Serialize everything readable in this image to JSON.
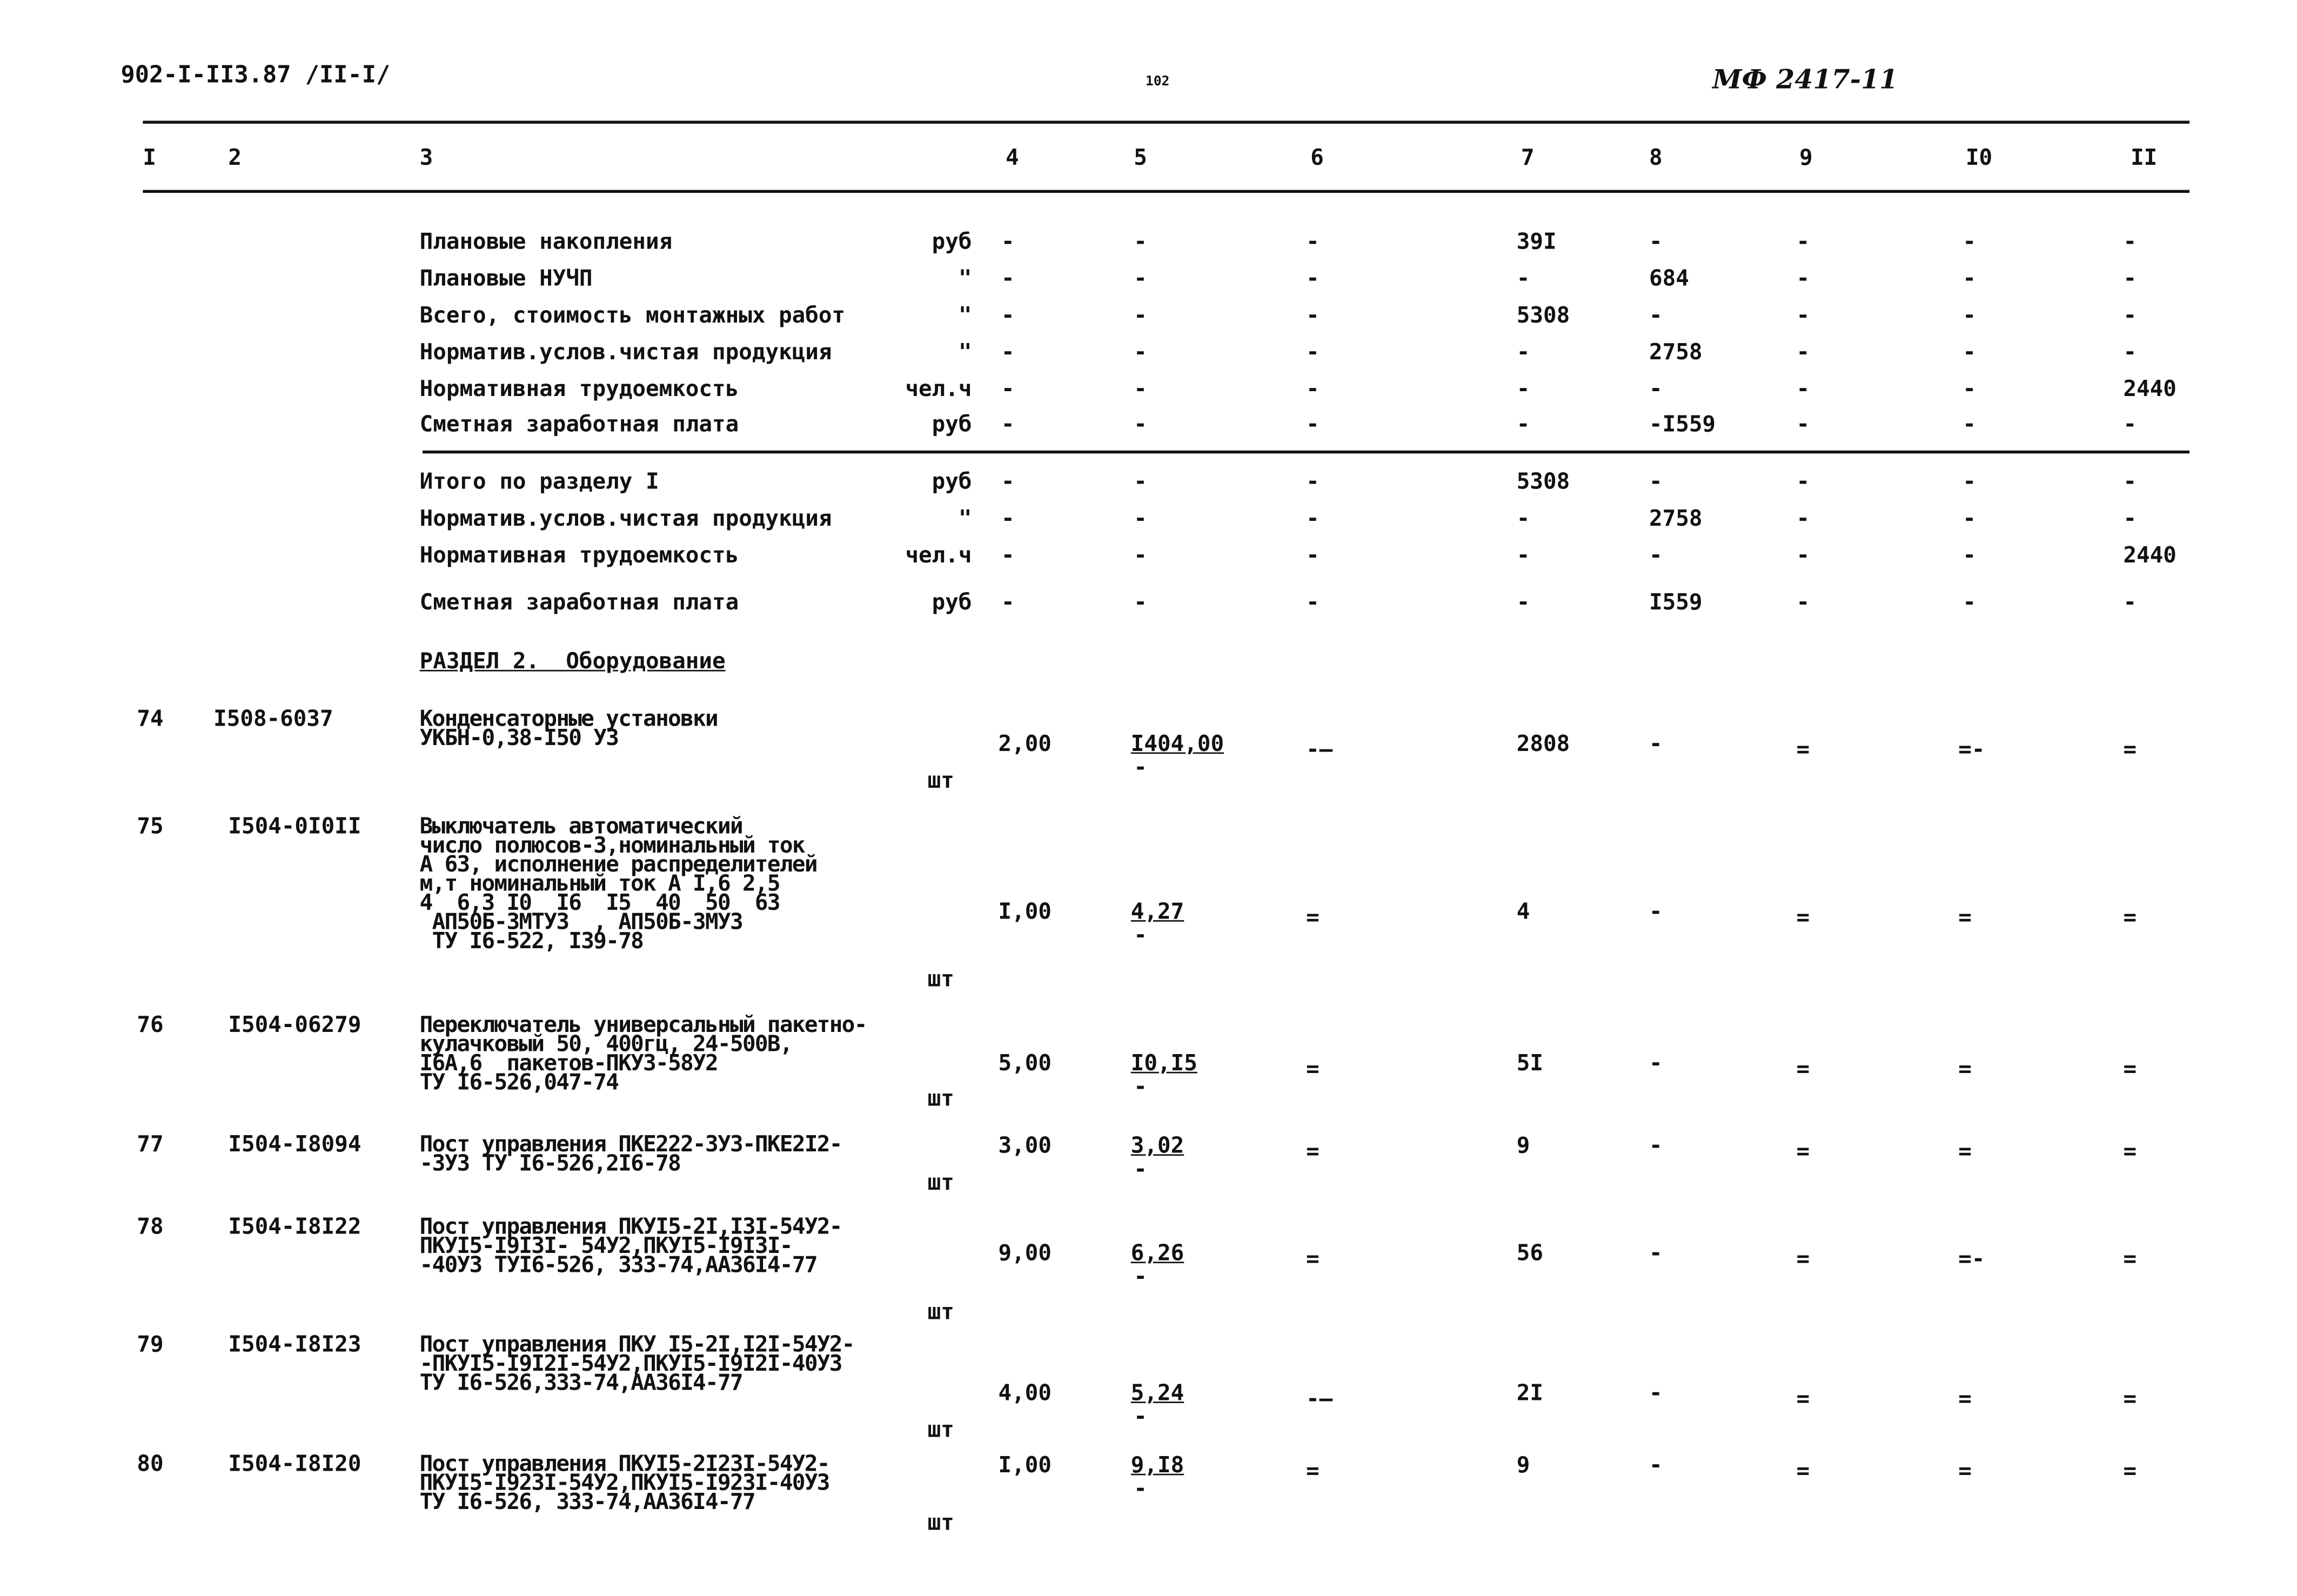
{
  "header": {
    "doc_code": "902-I-II3.87 /II-I/",
    "page_number": "102",
    "stamp": "МФ 2417-11"
  },
  "columns": [
    "I",
    "2",
    "3",
    "4",
    "5",
    "6",
    "7",
    "8",
    "9",
    "I0",
    "II"
  ],
  "summary_rows": [
    {
      "label": "Плановые накопления",
      "unit": "руб",
      "c4": "-",
      "c5": "-",
      "c6": "-",
      "c7": "39I",
      "c8": "-",
      "c9": "-",
      "c10": "-",
      "c11": "-"
    },
    {
      "label": "Плановые НУЧП",
      "unit": "\"",
      "c4": "-",
      "c5": "-",
      "c6": "-",
      "c7": "-",
      "c8": "684",
      "c9": "-",
      "c10": "-",
      "c11": "-"
    },
    {
      "label": "Всего, стоимость монтажных работ",
      "unit": "\"",
      "c4": "-",
      "c5": "-",
      "c6": "-",
      "c7": "5308",
      "c8": "-",
      "c9": "-",
      "c10": "-",
      "c11": "-"
    },
    {
      "label": "Норматив.услов.чистая продукция",
      "unit": "\"",
      "c4": "-",
      "c5": "-",
      "c6": "-",
      "c7": "-",
      "c8": "2758",
      "c9": "-",
      "c10": "-",
      "c11": "-"
    },
    {
      "label": "Нормативная трудоемкость",
      "unit": "чел.ч",
      "c4": "-",
      "c5": "-",
      "c6": "-",
      "c7": "-",
      "c8": "-",
      "c9": "-",
      "c10": "-",
      "c11": "2440"
    },
    {
      "label": "Сметная заработная плата",
      "unit": "руб",
      "c4": "-",
      "c5": "-",
      "c6": "-",
      "c7": "-",
      "c8": "-I559",
      "c9": "-",
      "c10": "-",
      "c11": "-"
    }
  ],
  "total_rows": [
    {
      "label": "Итого по разделу I",
      "unit": "руб",
      "c4": "-",
      "c5": "-",
      "c6": "-",
      "c7": "5308",
      "c8": "-",
      "c9": "-",
      "c10": "-",
      "c11": "-"
    },
    {
      "label": "Норматив.услов.чистая продукция",
      "unit": "\"",
      "c4": "-",
      "c5": "-",
      "c6": "-",
      "c7": "-",
      "c8": "2758",
      "c9": "-",
      "c10": "-",
      "c11": "-"
    },
    {
      "label": "Нормативная трудоемкость",
      "unit": "чел.ч",
      "c4": "-",
      "c5": "-",
      "c6": "-",
      "c7": "-",
      "c8": "-",
      "c9": "-",
      "c10": "-",
      "c11": "2440"
    },
    {
      "label": "Сметная заработная плата",
      "unit": "руб",
      "c4": "-",
      "c5": "-",
      "c6": "-",
      "c7": "-",
      "c8": "I559",
      "c9": "-",
      "c10": "-",
      "c11": "-"
    }
  ],
  "section_title": "РАЗДЕЛ 2.  Оборудование",
  "items": [
    {
      "num": "74",
      "code": "I508-6037",
      "desc": "Конденсаторные установки\nУКБН-0,38-I50 У3",
      "unit": "шт",
      "qty": "2,00",
      "price": "I404,00",
      "price_sub": "-",
      "c6": "-—",
      "c7": "2808",
      "c8": "-",
      "c9": "=",
      "c10": "=-",
      "c11": "="
    },
    {
      "num": "75",
      "code": "I504-0I0II",
      "desc": "Выключатель автоматический\nчисло полюсов-3,номинальный ток\nА 63, исполнение распределителей\nм,т номинальный ток А I,6 2,5\n4  6,3 I0  I6  I5  40  50  63\n АП50Б-3МТУ3  , АП50Б-3МУ3\n ТУ I6-522, I39-78",
      "unit": "шт",
      "qty": "I,00",
      "price": "4,27",
      "price_sub": "-",
      "c6": "=",
      "c7": "4",
      "c8": "-",
      "c9": "=",
      "c10": "=",
      "c11": "="
    },
    {
      "num": "76",
      "code": "I504-06279",
      "desc": "Переключатель универсальный пакетно-\nкулачковый 50, 400гц, 24-500В,\nI6А,6  пакетов-ПКУ3-58У2\nТУ I6-526,047-74",
      "unit": "шт",
      "qty": "5,00",
      "price": "I0,I5",
      "price_sub": "-",
      "c6": "=",
      "c7": "5I",
      "c8": "-",
      "c9": "=",
      "c10": "=",
      "c11": "="
    },
    {
      "num": "77",
      "code": "I504-I8094",
      "desc": "Пост управления ПКЕ222-3У3-ПКЕ2I2-\n-3У3 ТУ I6-526,2I6-78",
      "unit": "шт",
      "qty": "3,00",
      "price": "3,02",
      "price_sub": "-",
      "c6": "=",
      "c7": "9",
      "c8": "-",
      "c9": "=",
      "c10": "=",
      "c11": "="
    },
    {
      "num": "78",
      "code": "I504-I8I22",
      "desc": "Пост управления ПКУI5-2I,I3I-54У2-\nПКУI5-I9I3I- 54У2,ПКУI5-I9I3I-\n-40У3 ТУI6-526, 333-74,АА36I4-77",
      "unit": "шт",
      "qty": "9,00",
      "price": "6,26",
      "price_sub": "-",
      "c6": "=",
      "c7": "56",
      "c8": "-",
      "c9": "=",
      "c10": "=-",
      "c11": "="
    },
    {
      "num": "79",
      "code": "I504-I8I23",
      "desc": "Пост управления ПКУ I5-2I,I2I-54У2-\n-ПКУI5-I9I2I-54У2,ПКУI5-I9I2I-40У3\nТУ I6-526,333-74,АА36I4-77",
      "unit": "шт",
      "qty": "4,00",
      "price": "5,24",
      "price_sub": "-",
      "c6": "-—",
      "c7": "2I",
      "c8": "-",
      "c9": "=",
      "c10": "=",
      "c11": "="
    },
    {
      "num": "80",
      "code": "I504-I8I20",
      "desc": "Пост управления ПКУI5-2I23I-54У2-\nПКУI5-I923I-54У2,ПКУI5-I923I-40У3\nТУ I6-526, 333-74,АА36I4-77",
      "unit": "шт",
      "qty": "I,00",
      "price": "9,I8",
      "price_sub": "-",
      "c6": "=",
      "c7": "9",
      "c8": "-",
      "c9": "=",
      "c10": "=",
      "c11": "="
    }
  ]
}
